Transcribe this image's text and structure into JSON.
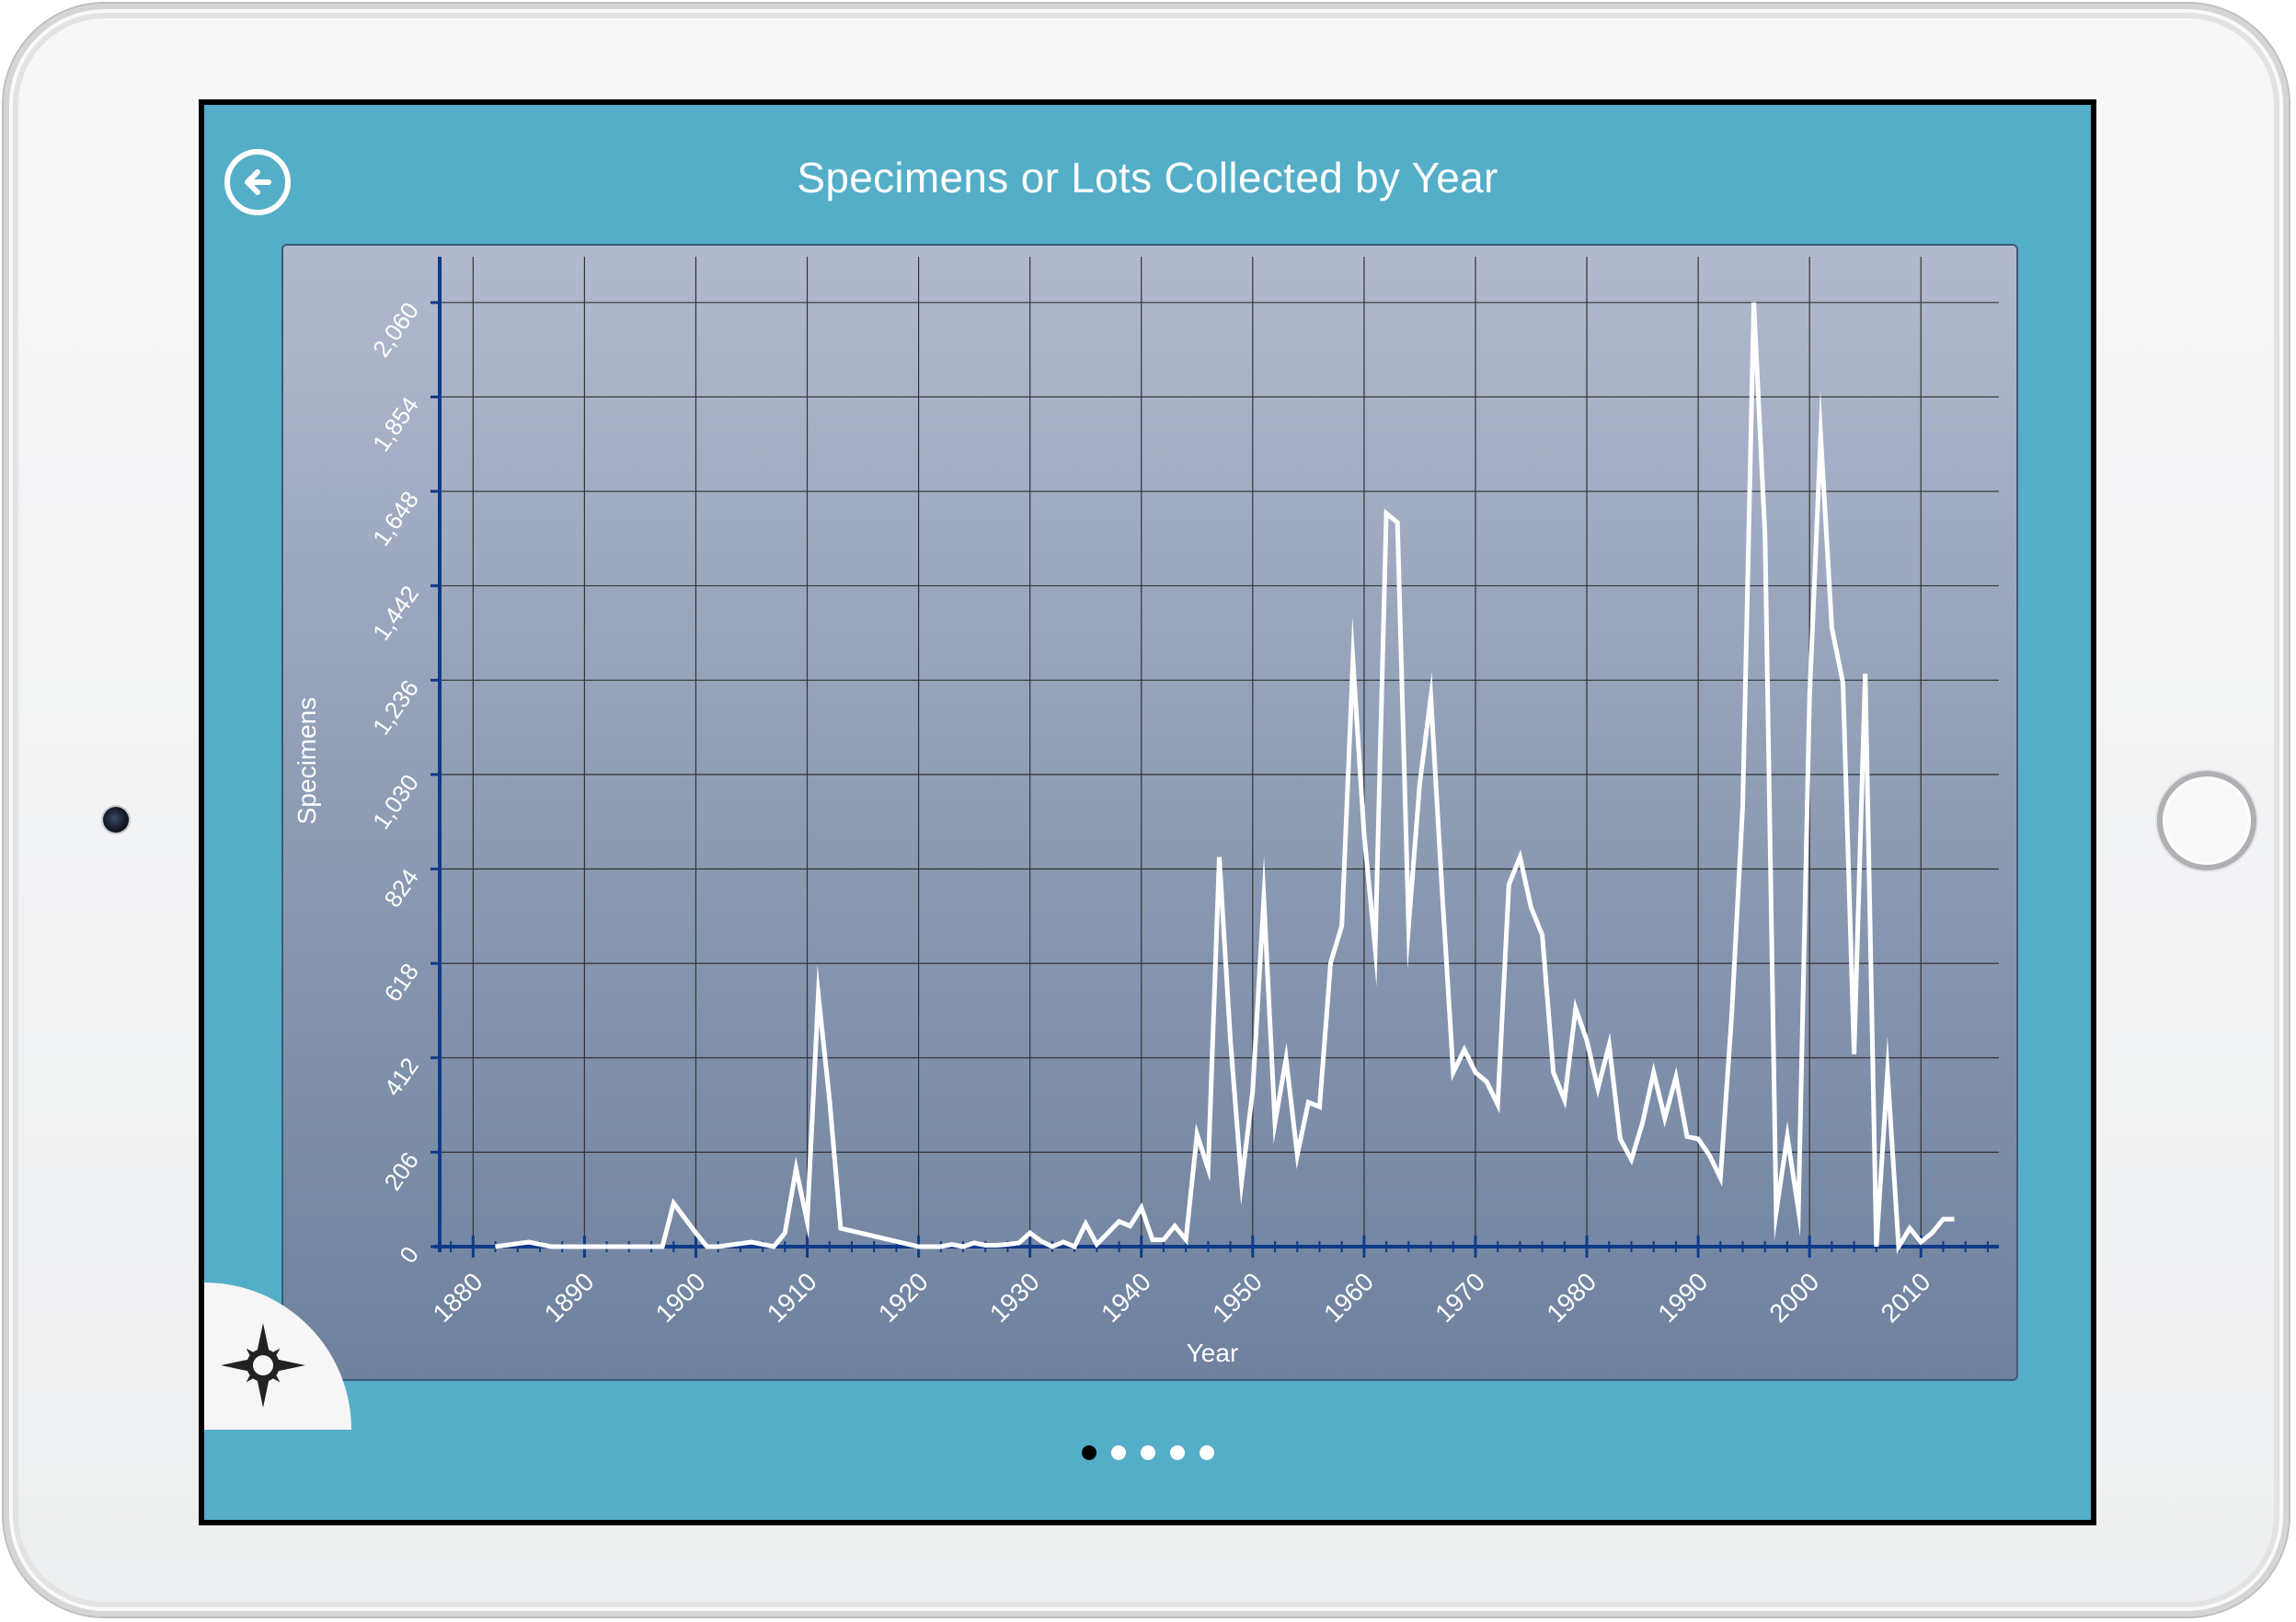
{
  "header": {
    "title": "Specimens or Lots Collected by Year"
  },
  "colors": {
    "app_background": "#54aec7",
    "axis": "#0f3a8a",
    "line": "#ffffff",
    "grid": "#333333"
  },
  "icons": {
    "back": "back-arrow-circle-icon",
    "settings": "compass-star-icon"
  },
  "pagination": {
    "count": 5,
    "active_index": 0
  },
  "chart_data": {
    "type": "line",
    "title": "Specimens or Lots Collected by Year",
    "xlabel": "Year",
    "ylabel": "Specimens",
    "xlim": [
      1877,
      2017
    ],
    "ylim": [
      0,
      2160
    ],
    "x_ticks": [
      1880,
      1890,
      1900,
      1910,
      1920,
      1930,
      1940,
      1950,
      1960,
      1970,
      1980,
      1990,
      2000,
      2010
    ],
    "y_ticks": [
      "0",
      "206",
      "412",
      "618",
      "824",
      "1,030",
      "1,236",
      "1,442",
      "1,648",
      "1,854",
      "2,060"
    ],
    "y_tick_values": [
      0,
      206,
      412,
      618,
      824,
      1030,
      1236,
      1442,
      1648,
      1854,
      2060
    ],
    "grid": true,
    "legend": "none",
    "series": [
      {
        "x": [
          1882,
          1885,
          1887,
          1897,
          1898,
          1900,
          1901,
          1902,
          1905,
          1907,
          1908,
          1909,
          1910,
          1911,
          1912,
          1913,
          1920,
          1921,
          1922,
          1923,
          1924,
          1925,
          1926,
          1927,
          1928,
          1929,
          1930,
          1931,
          1932,
          1933,
          1934,
          1935,
          1936,
          1937,
          1938,
          1939,
          1940,
          1941,
          1942,
          1943,
          1944,
          1945,
          1946,
          1947,
          1948,
          1949,
          1950,
          1951,
          1952,
          1953,
          1954,
          1955,
          1956,
          1957,
          1958,
          1959,
          1960,
          1961,
          1962,
          1963,
          1964,
          1965,
          1966,
          1967,
          1968,
          1969,
          1970,
          1971,
          1972,
          1973,
          1974,
          1975,
          1976,
          1977,
          1978,
          1979,
          1980,
          1981,
          1982,
          1983,
          1984,
          1985,
          1986,
          1987,
          1988,
          1989,
          1990,
          1991,
          1992,
          1993,
          1994,
          1995,
          1996,
          1997,
          1998,
          1999,
          2000,
          2001,
          2002,
          2003,
          2004,
          2005,
          2006,
          2007,
          2008,
          2009,
          2010,
          2011,
          2012,
          2013
        ],
        "y": [
          0,
          10,
          0,
          0,
          95,
          30,
          0,
          0,
          10,
          0,
          30,
          170,
          55,
          550,
          320,
          40,
          0,
          0,
          0,
          5,
          0,
          8,
          3,
          3,
          5,
          8,
          30,
          12,
          0,
          10,
          0,
          50,
          5,
          30,
          55,
          45,
          85,
          15,
          15,
          45,
          15,
          245,
          170,
          850,
          450,
          140,
          340,
          760,
          270,
          410,
          200,
          315,
          305,
          620,
          700,
          1280,
          900,
          650,
          1600,
          1580,
          700,
          1010,
          1200,
          780,
          380,
          430,
          380,
          360,
          310,
          790,
          850,
          740,
          680,
          380,
          320,
          520,
          450,
          345,
          440,
          235,
          190,
          270,
          380,
          280,
          370,
          240,
          235,
          200,
          150,
          500,
          960,
          2060,
          1550,
          75,
          240,
          80,
          1200,
          1770,
          1350,
          1230,
          420,
          1250,
          0,
          380,
          0,
          40,
          10,
          30,
          60,
          60
        ]
      }
    ]
  }
}
